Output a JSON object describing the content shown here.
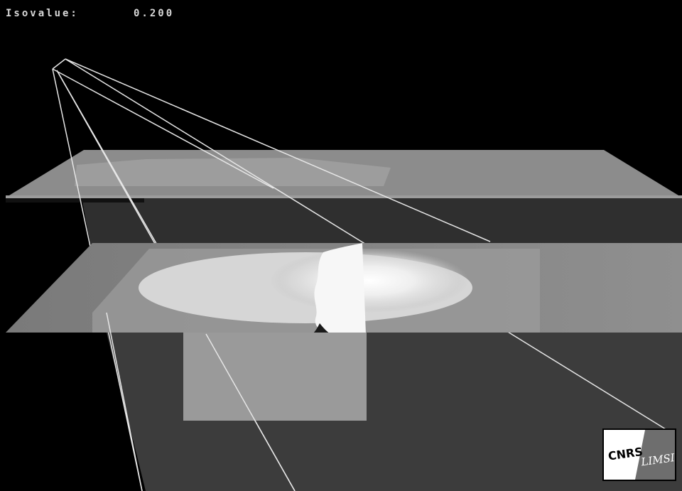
{
  "hud": {
    "isovalue_label": "Isovalue:",
    "isovalue_value": "0.200"
  },
  "logo": {
    "left_text": "CNRS",
    "right_text": "LIMSI"
  },
  "colors": {
    "background": "#000000",
    "wireframe": "#e6e6e6",
    "plane": "#8c8c8c",
    "isosurface": "#ffffff",
    "logo_dark": "#6e6e6e"
  }
}
